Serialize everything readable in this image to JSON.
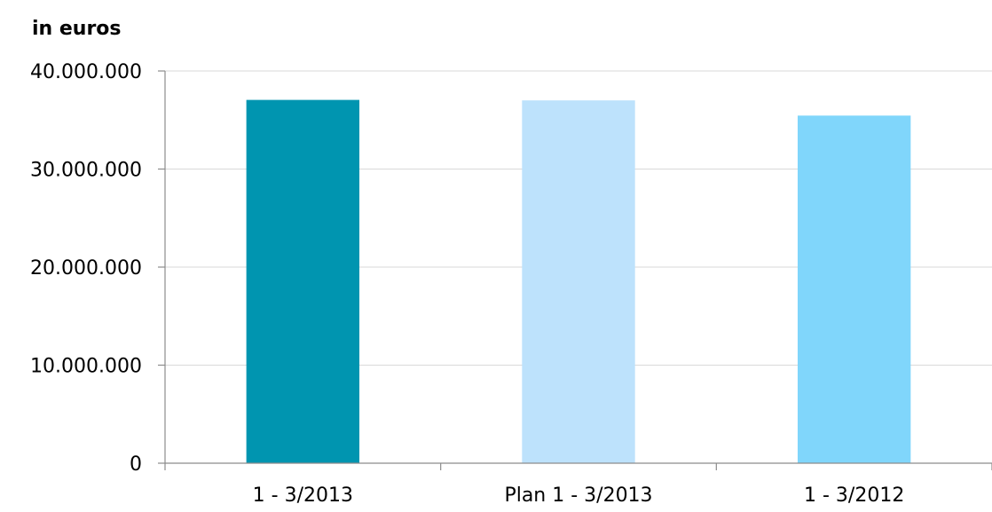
{
  "chart_data": {
    "type": "bar",
    "unit_label": "in euros",
    "categories": [
      "1 - 3/2013",
      "Plan 1 - 3/2013",
      "1 - 3/2012"
    ],
    "values": [
      37050000,
      37000000,
      35450000
    ],
    "colors": [
      "#0095b0",
      "#bde2fc",
      "#80d6fb"
    ],
    "ylim": [
      0,
      40000000
    ],
    "yticks": [
      0,
      10000000,
      20000000,
      30000000,
      40000000
    ],
    "ytick_labels": [
      "0",
      "10.000.000",
      "20.000.000",
      "30.000.000",
      "40.000.000"
    ],
    "grid": true,
    "legend": "none"
  }
}
